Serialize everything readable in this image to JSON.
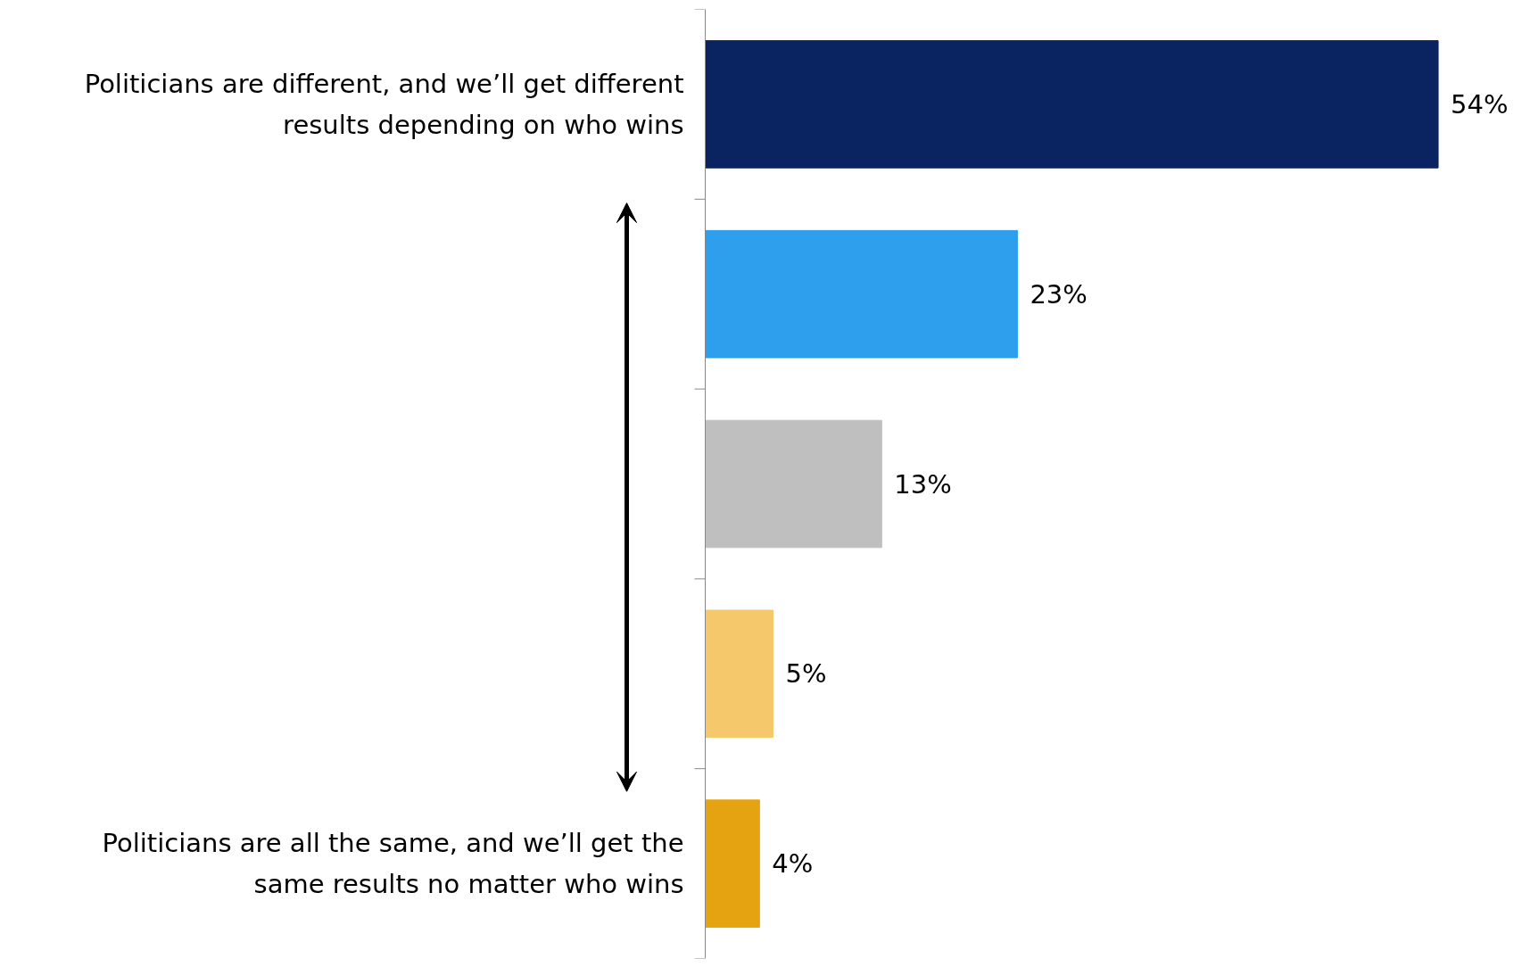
{
  "chart_data": {
    "type": "bar",
    "orientation": "horizontal",
    "categories": [
      "Politicians are different, and we’ll get different results depending on who wins",
      null,
      null,
      null,
      "Politicians are all the same, and we’ll get the same results no matter who wins"
    ],
    "values": [
      54,
      23,
      13,
      5,
      4
    ],
    "colors": [
      "#0a2461",
      "#2e9fec",
      "#bfbfbf",
      "#f5c96b",
      "#e6a311"
    ],
    "value_labels": [
      "54%",
      "23%",
      "13%",
      "5%",
      "4%"
    ]
  }
}
